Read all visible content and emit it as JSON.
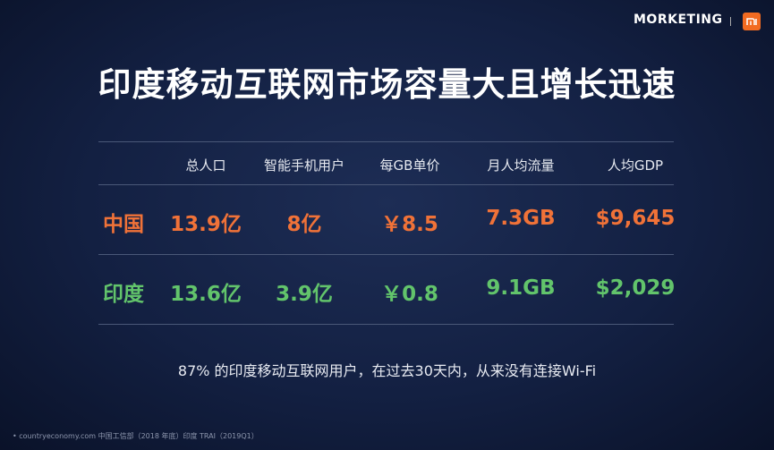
{
  "header": {
    "brand": "MORKETING"
  },
  "title": "印度移动互联网市场容量大且增长迅速",
  "table": {
    "columns": [
      "总人口",
      "智能手机用户",
      "每GB单价",
      "月人均流量",
      "人均GDP"
    ],
    "rows": [
      {
        "label": "中国",
        "cells": [
          "13.9亿",
          "8亿",
          "￥8.5",
          "7.3GB",
          "$9,645"
        ]
      },
      {
        "label": "印度",
        "cells": [
          "13.6亿",
          "3.9亿",
          "￥0.8",
          "9.1GB",
          "$2,029"
        ]
      }
    ]
  },
  "note": "87% 的印度移动互联网用户，在过去30天内，从来没有连接Wi-Fi",
  "footer": {
    "source": "countryeconomy.com 中国工信部（2018 年底）印度 TRAI（2019Q1）"
  }
}
